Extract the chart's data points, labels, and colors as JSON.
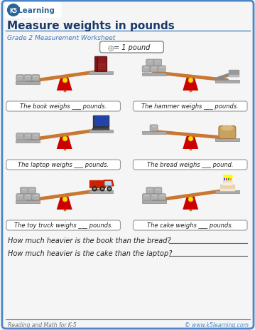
{
  "title": "Measure weights in pounds",
  "subtitle": "Grade 2 Measurement Worksheet",
  "bg_color": "#f5f5f5",
  "border_color": "#4a86c8",
  "title_color": "#1a3a6b",
  "subtitle_color": "#3a7abf",
  "legend_text": "= 1 pound",
  "scale_captions": [
    "The book weighs ___ pounds.",
    "The hammer weighs ___ pounds.",
    "The laptop weighs ___ pounds.",
    "The bread weighs ___ pound.",
    "The toy truck weighs ___ pounds.",
    "The cake weighs ___ pounds."
  ],
  "questions": [
    "How much heavier is the book than the bread?",
    "How much heavier is the cake than the laptop?"
  ],
  "footer_left": "Reading and Math for K-5",
  "footer_right": "© www.k5learning.com",
  "fulcrum_color": "#cc0000",
  "beam_color": "#c87832",
  "platform_color": "#aaaaaa",
  "weight_color": "#aaaaaa",
  "logo_bg": "#2a6496",
  "logo_text_color": "#ffffff"
}
